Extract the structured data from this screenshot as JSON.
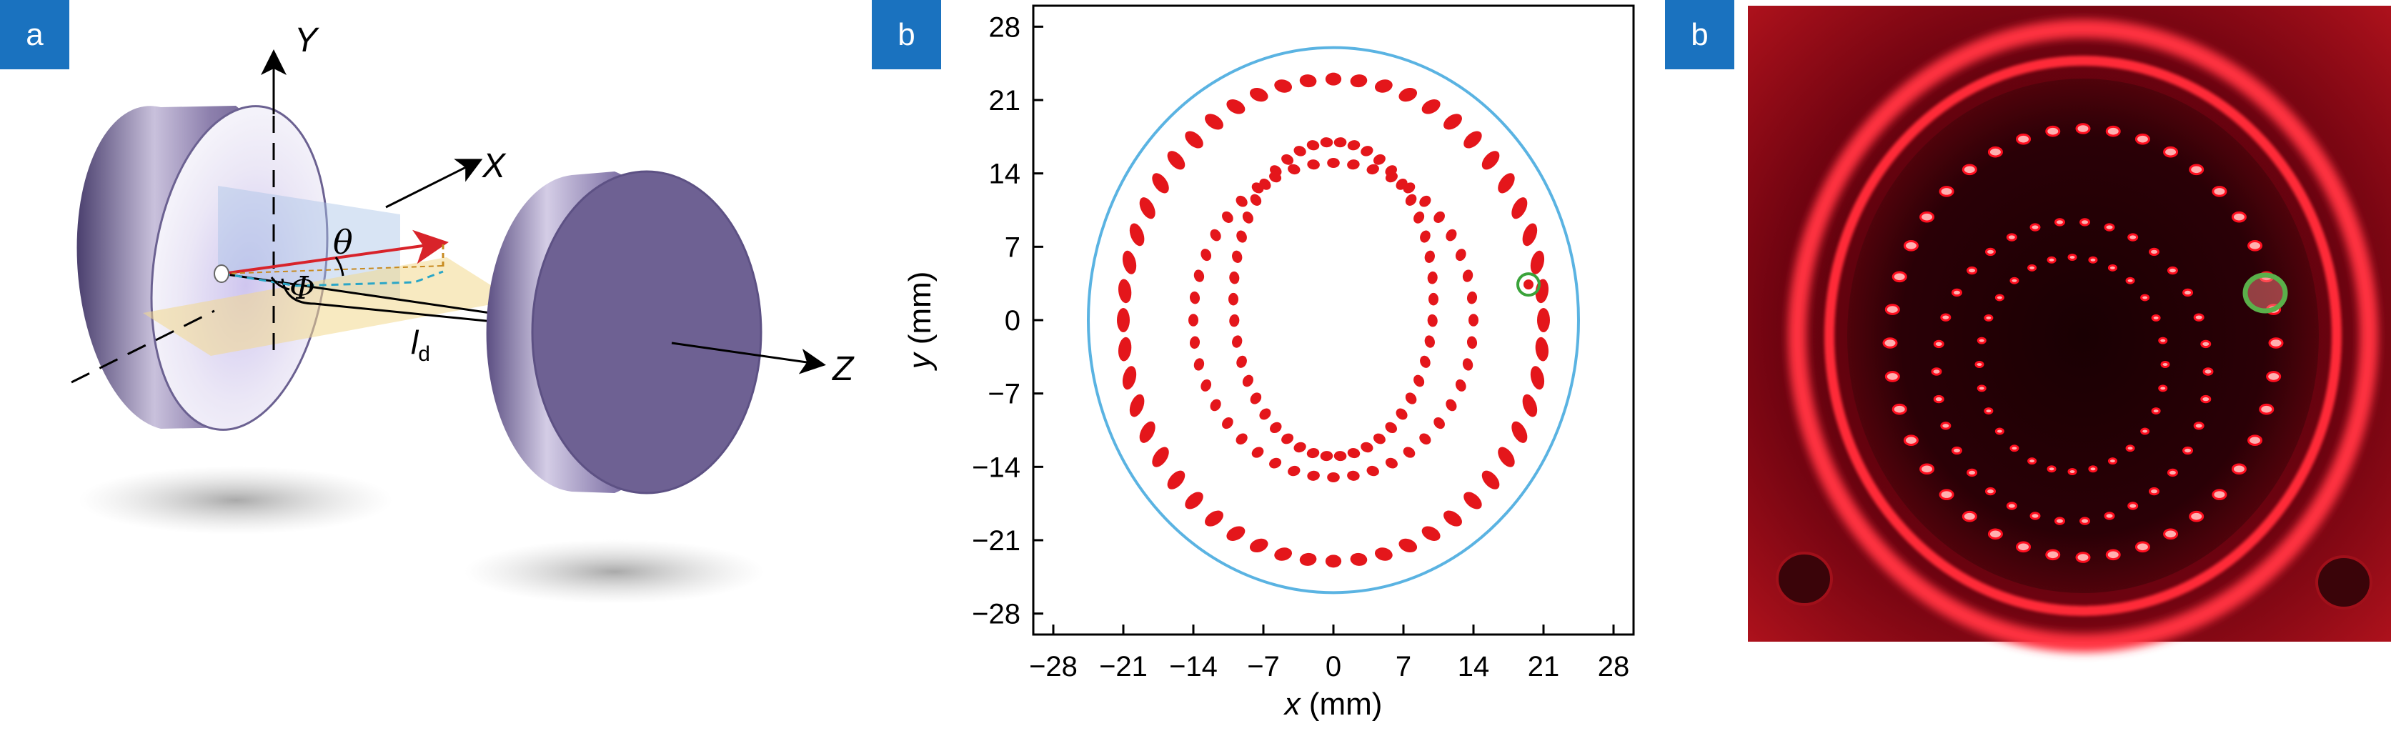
{
  "panels": [
    {
      "tag": "a"
    },
    {
      "tag": "b"
    },
    {
      "tag": "b"
    }
  ],
  "diagram": {
    "axis_y": "Y",
    "axis_x": "X",
    "axis_z": "Z",
    "theta": "θ",
    "phi": "Φ",
    "ld_main": "l",
    "ld_sub": "d"
  },
  "chart_data": {
    "type": "scatter",
    "title": "",
    "xlabel_var": "x",
    "xlabel_unit": " (mm)",
    "ylabel_var": "y",
    "ylabel_unit": " (mm)",
    "xlim": [
      -30,
      30
    ],
    "ylim": [
      -30,
      30
    ],
    "xticks": [
      "−28",
      "−21",
      "−14",
      "−7",
      "0",
      "7",
      "14",
      "21",
      "28"
    ],
    "yticks": [
      "28",
      "21",
      "14",
      "7",
      "0",
      "−7",
      "−14",
      "−21",
      "−28"
    ],
    "tick_values": [
      -28,
      -21,
      -14,
      -7,
      0,
      7,
      14,
      21,
      28
    ],
    "boundary": {
      "cx": 0,
      "cy": 0,
      "rx": 24.5,
      "ry": 26
    },
    "spot_color": "#e4161b",
    "boundary_color": "#5ab3e2",
    "highlight_color": "#3aa33a",
    "highlight": {
      "x": 19.5,
      "y": 3.4
    },
    "rings": [
      {
        "name": "inner",
        "rx": 10,
        "ry": 15,
        "cx": 0,
        "cy": 2,
        "n": 46
      },
      {
        "name": "middle",
        "rx": 14,
        "ry": 15,
        "cx": 0,
        "cy": 0,
        "n": 44
      },
      {
        "name": "outer",
        "rx": 21,
        "ry": 23,
        "cx": 0,
        "cy": 0,
        "n": 52
      }
    ]
  },
  "photo": {
    "glow_color": "#ff1020"
  }
}
